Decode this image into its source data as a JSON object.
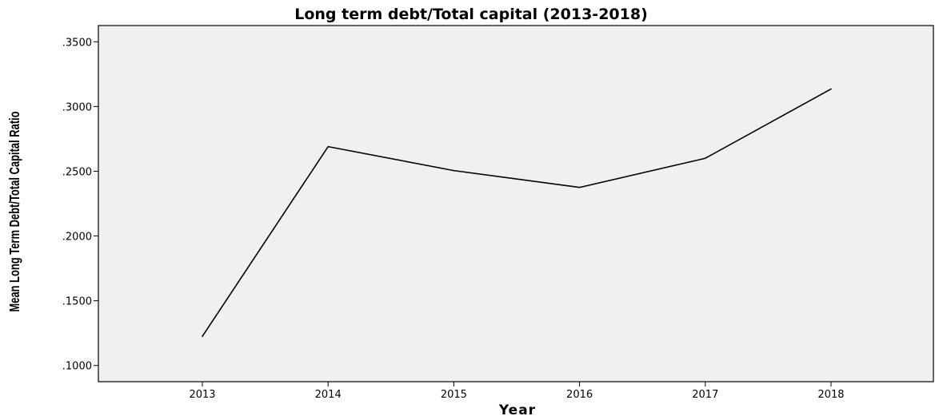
{
  "chart_data": {
    "type": "line",
    "title": "Long term debt/Total capital (2013-2018)",
    "xlabel": "Year",
    "ylabel": "Mean Long Term Debt/Total Capital Ratio",
    "categories": [
      "2013",
      "2014",
      "2015",
      "2016",
      "2017",
      "2018"
    ],
    "values": [
      0.1225,
      0.269,
      0.2505,
      0.2375,
      0.26,
      0.3135
    ],
    "ylim": [
      0.0875,
      0.3625
    ],
    "yticks": [
      0.1,
      0.15,
      0.2,
      0.25,
      0.3,
      0.35
    ],
    "ytick_labels": [
      ".1000",
      ".1500",
      ".2000",
      ".2500",
      ".3000",
      ".3500"
    ],
    "grid": false,
    "legend": "none",
    "colors": {
      "plot_background": "#f0f0f0",
      "line": "#000000",
      "frame": "#000000"
    }
  }
}
